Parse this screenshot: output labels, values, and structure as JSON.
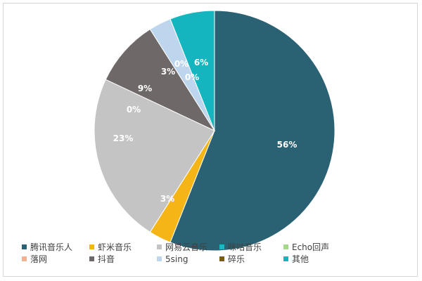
{
  "chart_data": {
    "type": "pie",
    "title": "",
    "legend_position": "bottom",
    "slices": [
      {
        "label": "腾讯音乐人",
        "value": 56,
        "value_label": "56%",
        "color": "#2a6173"
      },
      {
        "label": "虾米音乐",
        "value": 3,
        "value_label": "3%",
        "color": "#f5b516"
      },
      {
        "label": "网易云音乐",
        "value": 23,
        "value_label": "23%",
        "color": "#c4c4c4"
      },
      {
        "label": "咪咕音乐",
        "value": 0,
        "value_label": "0%",
        "color": "#19b7c3"
      },
      {
        "label": "Echo回声",
        "value": 0,
        "value_label": "0%",
        "color": "#a6d88c"
      },
      {
        "label": "落网",
        "value": 0,
        "value_label": "",
        "color": "#f5b08f"
      },
      {
        "label": "抖音",
        "value": 9,
        "value_label": "9%",
        "color": "#6f6868"
      },
      {
        "label": "5sing",
        "value": 3,
        "value_label": "3%",
        "color": "#bdd6ee"
      },
      {
        "label": "碎乐",
        "value": 0,
        "value_label": "0%",
        "color": "#7a5c0e"
      },
      {
        "label": "其他",
        "value": 6,
        "value_label": "6%",
        "color": "#15b5bf"
      }
    ]
  }
}
